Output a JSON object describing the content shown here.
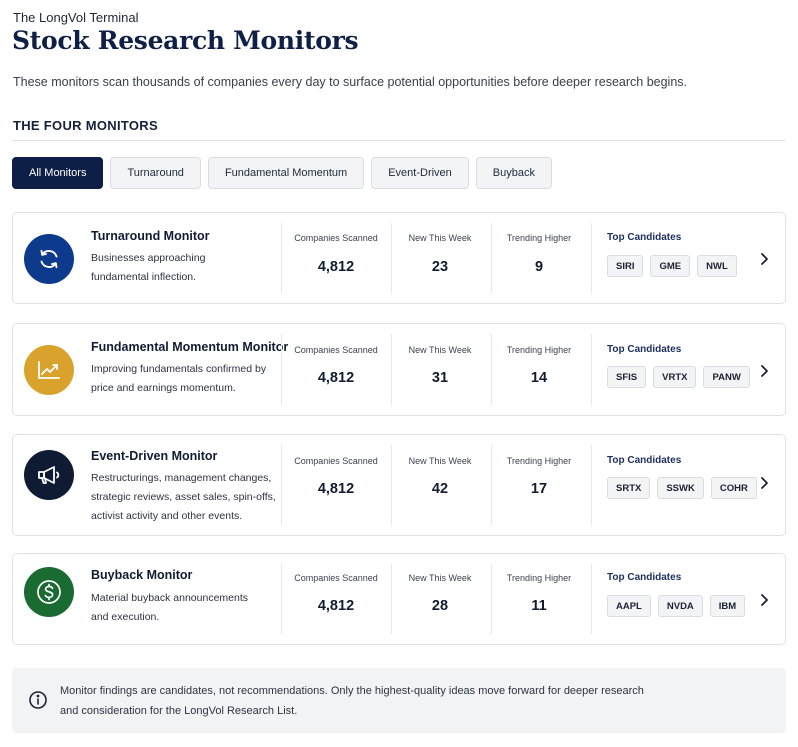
{
  "header": {
    "brand": "The LongVol Terminal",
    "title": "Stock Research Monitors",
    "subtitle": "These monitors scan thousands of companies every day to surface potential opportunities before deeper research begins.",
    "section_heading": "THE FOUR MONITORS"
  },
  "tabs": [
    {
      "label": "All Monitors",
      "active": true
    },
    {
      "label": "Turnaround",
      "active": false
    },
    {
      "label": "Fundamental Momentum",
      "active": false
    },
    {
      "label": "Event-Driven",
      "active": false
    },
    {
      "label": "Buyback",
      "active": false
    }
  ],
  "stat_labels": {
    "scanned": "Companies Scanned",
    "new": "New This Week",
    "trending": "Trending Higher",
    "candidates": "Top Candidates"
  },
  "monitors": [
    {
      "name": "Turnaround Monitor",
      "description": "Businesses approaching fundamental inflection.",
      "icon": "refresh-icon",
      "icon_color": "#0d3a8c",
      "scanned": "4,812",
      "new": "23",
      "trending": "9",
      "candidates": [
        "SIRI",
        "GME",
        "NWL"
      ]
    },
    {
      "name": "Fundamental Momentum Monitor",
      "description": "Improving fundamentals confirmed by price and earnings momentum.",
      "icon": "trend-up-icon",
      "icon_color": "#d9a22d",
      "scanned": "4,812",
      "new": "31",
      "trending": "14",
      "candidates": [
        "SFIS",
        "VRTX",
        "PANW"
      ]
    },
    {
      "name": "Event-Driven Monitor",
      "description": "Restructurings, management changes, strategic reviews, asset sales, spin-offs, activist activity and other events.",
      "icon": "megaphone-icon",
      "icon_color": "#0f1a33",
      "scanned": "4,812",
      "new": "42",
      "trending": "17",
      "candidates": [
        "SRTX",
        "SSWK",
        "COHR"
      ]
    },
    {
      "name": "Buyback Monitor",
      "description": "Material buyback announcements and execution.",
      "icon": "dollar-icon",
      "icon_color": "#1a6b31",
      "scanned": "4,812",
      "new": "28",
      "trending": "11",
      "candidates": [
        "AAPL",
        "NVDA",
        "IBM"
      ]
    }
  ],
  "notice": {
    "icon": "info-icon",
    "text_line1": "Monitor findings are candidates, not recommendations. Only the highest-quality ideas move forward for deeper research",
    "text_line2": "and consideration for the LongVol Research List."
  }
}
